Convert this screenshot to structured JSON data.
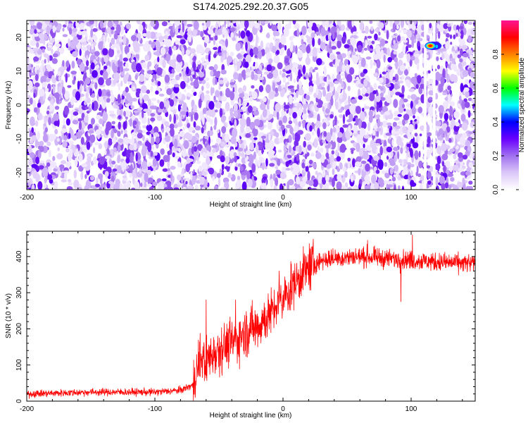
{
  "title": "S174.2025.292.20.37.G05",
  "chart_data": [
    {
      "type": "heatmap",
      "xlabel": "Height of straight line (km)",
      "ylabel": "Frequency (Hz)",
      "xlim": [
        -200,
        150
      ],
      "ylim": [
        -25,
        25
      ],
      "xticks": [
        -200,
        -100,
        0,
        100
      ],
      "yticks": [
        -20,
        -10,
        0,
        10,
        20
      ],
      "colorbar": {
        "label": "Normalized spectral amplitude",
        "range": [
          0,
          1
        ],
        "ticks": [
          0.0,
          0.2,
          0.4,
          0.6,
          0.8
        ],
        "tick_labels": [
          "0.0",
          "0.2",
          "0.4",
          "0.6",
          "0.8"
        ],
        "colors": [
          "#ffffff",
          "#dcc8f8",
          "#a070f0",
          "#6a00ff",
          "#0000ff",
          "#00ffff",
          "#00ff00",
          "#ffff00",
          "#ff8000",
          "#ff0000",
          "#ff1493"
        ]
      },
      "gaps_x": [
        [
          110,
          112
        ],
        [
          117,
          119
        ]
      ],
      "peak": {
        "x": 115,
        "y": 17.5,
        "amplitude": 1.0
      }
    },
    {
      "type": "line",
      "xlabel": "Height of straight line (km)",
      "ylabel": "SNR (10 * v/v)",
      "xlim": [
        -200,
        150
      ],
      "ylim": [
        0,
        470
      ],
      "xticks": [
        -200,
        -100,
        0,
        100
      ],
      "yticks": [
        0,
        100,
        200,
        300,
        400
      ],
      "series_color": "#ff0000",
      "trend": {
        "x": [
          -200,
          -150,
          -100,
          -80,
          -70,
          -65,
          -60,
          -50,
          -40,
          -30,
          -20,
          -10,
          0,
          10,
          20,
          30,
          40,
          60,
          80,
          100,
          120,
          150
        ],
        "y": [
          20,
          25,
          25,
          30,
          45,
          120,
          110,
          150,
          160,
          190,
          210,
          240,
          280,
          330,
          370,
          390,
          395,
          400,
          395,
          390,
          385,
          380
        ]
      },
      "spikes": [
        {
          "x": -60,
          "y": 280
        },
        {
          "x": -37,
          "y": 280
        },
        {
          "x": -3,
          "y": 360
        },
        {
          "x": 66,
          "y": 445
        },
        {
          "x": 101,
          "y": 460
        },
        {
          "x": 92,
          "y": 275
        }
      ]
    }
  ]
}
